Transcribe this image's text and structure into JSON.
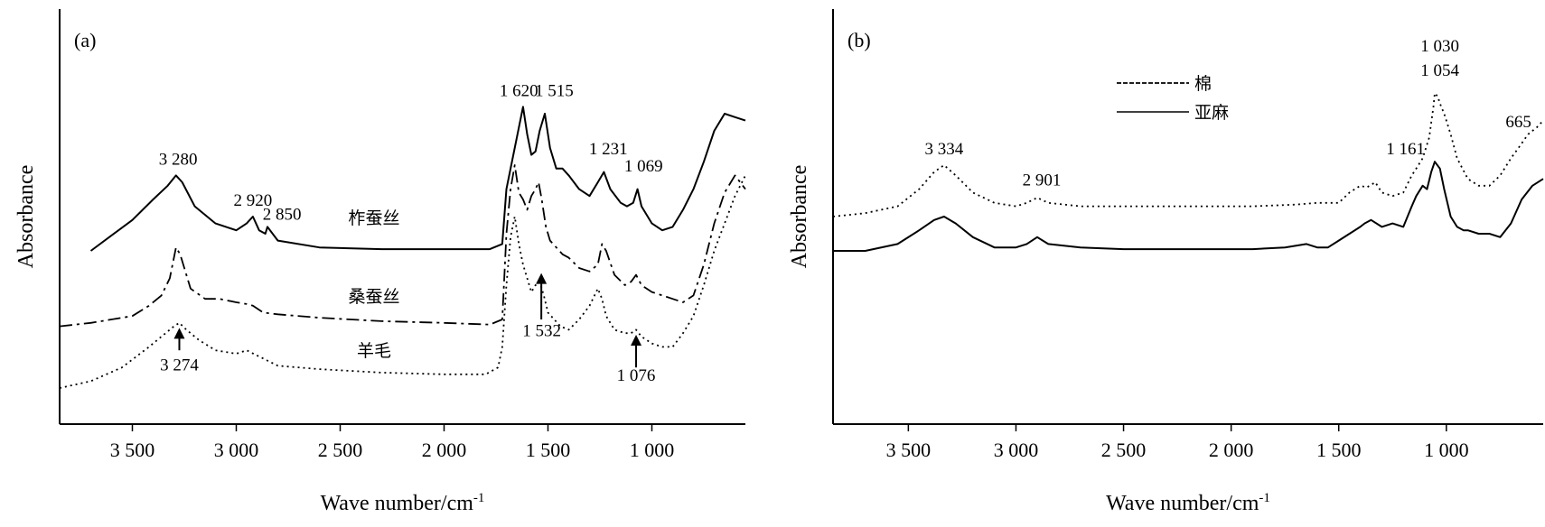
{
  "chart_data": [
    {
      "type": "line",
      "panel_label": "(a)",
      "xlabel": "Wave number/cm",
      "xlabel_sup": "-1",
      "ylabel": "Absorbance",
      "x_reversed": true,
      "xlim": [
        3850,
        550
      ],
      "ylim": [
        0,
        1
      ],
      "x_ticks": [
        3500,
        3000,
        2500,
        2000,
        1500,
        1000
      ],
      "x_tick_labels": [
        "3 500",
        "3 000",
        "2 500",
        "2 000",
        "1 500",
        "1 000"
      ],
      "grid": false,
      "series": [
        {
          "name": "柞蚕丝",
          "line_style": "solid",
          "x": [
            3700,
            3500,
            3400,
            3330,
            3290,
            3260,
            3200,
            3100,
            3000,
            2950,
            2920,
            2890,
            2860,
            2850,
            2800,
            2600,
            2300,
            2000,
            1780,
            1720,
            1700,
            1660,
            1640,
            1620,
            1600,
            1580,
            1560,
            1540,
            1515,
            1490,
            1460,
            1430,
            1400,
            1350,
            1300,
            1260,
            1231,
            1200,
            1150,
            1120,
            1090,
            1069,
            1050,
            1000,
            950,
            900,
            850,
            800,
            750,
            700,
            650,
            600,
            550
          ],
          "y": [
            0.4,
            0.49,
            0.55,
            0.59,
            0.62,
            0.6,
            0.53,
            0.48,
            0.46,
            0.48,
            0.5,
            0.46,
            0.45,
            0.47,
            0.43,
            0.41,
            0.405,
            0.405,
            0.405,
            0.42,
            0.58,
            0.7,
            0.76,
            0.82,
            0.74,
            0.68,
            0.69,
            0.75,
            0.8,
            0.7,
            0.64,
            0.64,
            0.62,
            0.58,
            0.56,
            0.6,
            0.63,
            0.58,
            0.54,
            0.53,
            0.54,
            0.58,
            0.53,
            0.48,
            0.46,
            0.47,
            0.52,
            0.58,
            0.66,
            0.75,
            0.8,
            0.79,
            0.78
          ]
        },
        {
          "name": "桑蚕丝",
          "line_style": "dashdot",
          "x": [
            3850,
            3700,
            3500,
            3420,
            3360,
            3320,
            3290,
            3270,
            3250,
            3220,
            3150,
            3080,
            3000,
            2950,
            2920,
            2870,
            2800,
            2600,
            2300,
            2000,
            1780,
            1720,
            1700,
            1680,
            1660,
            1640,
            1620,
            1600,
            1580,
            1560,
            1545,
            1530,
            1510,
            1490,
            1460,
            1430,
            1400,
            1350,
            1300,
            1260,
            1240,
            1220,
            1180,
            1130,
            1100,
            1076,
            1050,
            1000,
            950,
            900,
            850,
            800,
            750,
            700,
            650,
            600,
            550
          ],
          "y": [
            0.18,
            0.19,
            0.21,
            0.24,
            0.27,
            0.32,
            0.41,
            0.39,
            0.35,
            0.29,
            0.26,
            0.26,
            0.25,
            0.245,
            0.24,
            0.22,
            0.215,
            0.205,
            0.195,
            0.19,
            0.185,
            0.2,
            0.45,
            0.58,
            0.65,
            0.57,
            0.55,
            0.52,
            0.56,
            0.58,
            0.6,
            0.55,
            0.47,
            0.43,
            0.41,
            0.39,
            0.38,
            0.35,
            0.34,
            0.36,
            0.42,
            0.4,
            0.33,
            0.3,
            0.31,
            0.33,
            0.3,
            0.28,
            0.27,
            0.26,
            0.25,
            0.27,
            0.36,
            0.48,
            0.57,
            0.62,
            0.58
          ]
        },
        {
          "name": "羊毛",
          "line_style": "dotted",
          "x": [
            3850,
            3700,
            3550,
            3420,
            3340,
            3300,
            3274,
            3240,
            3180,
            3100,
            3000,
            2950,
            2900,
            2800,
            2600,
            2300,
            2000,
            1800,
            1740,
            1720,
            1700,
            1680,
            1660,
            1640,
            1620,
            1600,
            1580,
            1560,
            1540,
            1520,
            1500,
            1470,
            1440,
            1400,
            1350,
            1300,
            1260,
            1240,
            1220,
            1180,
            1130,
            1100,
            1076,
            1050,
            1000,
            950,
            900,
            850,
            800,
            750,
            700,
            650,
            600,
            550
          ],
          "y": [
            0.0,
            0.02,
            0.06,
            0.12,
            0.16,
            0.18,
            0.19,
            0.17,
            0.14,
            0.11,
            0.1,
            0.11,
            0.095,
            0.065,
            0.055,
            0.045,
            0.04,
            0.04,
            0.06,
            0.12,
            0.3,
            0.44,
            0.5,
            0.42,
            0.36,
            0.32,
            0.28,
            0.3,
            0.31,
            0.27,
            0.22,
            0.2,
            0.18,
            0.17,
            0.2,
            0.24,
            0.29,
            0.26,
            0.21,
            0.17,
            0.16,
            0.16,
            0.17,
            0.15,
            0.13,
            0.12,
            0.12,
            0.16,
            0.21,
            0.3,
            0.4,
            0.48,
            0.56,
            0.62
          ]
        }
      ],
      "annotations": [
        {
          "text": "3 280",
          "x": 3280,
          "y": 0.63
        },
        {
          "text": "2 920",
          "x": 2920,
          "y": 0.51
        },
        {
          "text": "2 850",
          "x": 2780,
          "y": 0.47
        },
        {
          "text": "1 620",
          "x": 1640,
          "y": 0.83
        },
        {
          "text": "1 515",
          "x": 1470,
          "y": 0.83
        },
        {
          "text": "1 231",
          "x": 1210,
          "y": 0.66
        },
        {
          "text": "1 069",
          "x": 1040,
          "y": 0.61
        },
        {
          "text": "1 532",
          "x": 1530,
          "y": 0.13
        },
        {
          "text": "1 076",
          "x": 1076,
          "y": 0.0
        },
        {
          "text": "3 274",
          "x": 3274,
          "y": 0.03
        }
      ],
      "arrows": [
        {
          "x": 3274,
          "y_from": 0.11,
          "y_to": 0.17
        },
        {
          "x": 1532,
          "y_from": 0.2,
          "y_to": 0.33
        },
        {
          "x": 1076,
          "y_from": 0.06,
          "y_to": 0.15
        }
      ]
    },
    {
      "type": "line",
      "panel_label": "(b)",
      "xlabel": "Wave number/cm",
      "xlabel_sup": "-1",
      "ylabel": "Absorbance",
      "x_reversed": true,
      "xlim": [
        3850,
        550
      ],
      "ylim": [
        0,
        1
      ],
      "x_ticks": [
        3500,
        3000,
        2500,
        2000,
        1500,
        1000
      ],
      "x_tick_labels": [
        "3 500",
        "3 000",
        "2 500",
        "2 000",
        "1 500",
        "1 000"
      ],
      "grid": false,
      "legend_position": "top-center",
      "series": [
        {
          "name": "棉",
          "line_style": "dotted",
          "x": [
            3850,
            3700,
            3550,
            3450,
            3380,
            3334,
            3280,
            3200,
            3100,
            3000,
            2950,
            2901,
            2850,
            2700,
            2500,
            2200,
            1900,
            1700,
            1600,
            1500,
            1450,
            1400,
            1370,
            1330,
            1300,
            1250,
            1200,
            1161,
            1140,
            1110,
            1080,
            1060,
            1054,
            1040,
            1030,
            1010,
            980,
            950,
            900,
            850,
            800,
            750,
            700,
            665,
            620,
            580,
            550
          ],
          "y": [
            0.5,
            0.51,
            0.53,
            0.58,
            0.63,
            0.65,
            0.62,
            0.57,
            0.54,
            0.53,
            0.54,
            0.555,
            0.54,
            0.53,
            0.53,
            0.53,
            0.53,
            0.535,
            0.54,
            0.54,
            0.57,
            0.59,
            0.585,
            0.6,
            0.57,
            0.56,
            0.57,
            0.62,
            0.64,
            0.67,
            0.73,
            0.82,
            0.86,
            0.85,
            0.83,
            0.8,
            0.74,
            0.67,
            0.61,
            0.59,
            0.59,
            0.62,
            0.67,
            0.7,
            0.74,
            0.76,
            0.78
          ]
        },
        {
          "name": "亚麻",
          "line_style": "solid",
          "x": [
            3850,
            3700,
            3550,
            3450,
            3380,
            3334,
            3280,
            3200,
            3100,
            3000,
            2950,
            2901,
            2850,
            2700,
            2500,
            2200,
            1900,
            1750,
            1650,
            1600,
            1550,
            1500,
            1450,
            1400,
            1380,
            1350,
            1300,
            1250,
            1200,
            1161,
            1140,
            1110,
            1090,
            1070,
            1054,
            1030,
            1010,
            980,
            950,
            920,
            900,
            850,
            800,
            750,
            700,
            650,
            600,
            550
          ],
          "y": [
            0.4,
            0.4,
            0.42,
            0.46,
            0.49,
            0.5,
            0.48,
            0.44,
            0.41,
            0.41,
            0.42,
            0.44,
            0.42,
            0.41,
            0.405,
            0.405,
            0.405,
            0.41,
            0.42,
            0.41,
            0.41,
            0.43,
            0.45,
            0.47,
            0.48,
            0.49,
            0.47,
            0.48,
            0.47,
            0.53,
            0.56,
            0.59,
            0.58,
            0.63,
            0.66,
            0.64,
            0.58,
            0.5,
            0.47,
            0.46,
            0.46,
            0.45,
            0.45,
            0.44,
            0.48,
            0.55,
            0.59,
            0.61
          ]
        }
      ],
      "annotations": [
        {
          "text": "3 334",
          "x": 3334,
          "y": 0.66
        },
        {
          "text": "2 901",
          "x": 2880,
          "y": 0.57
        },
        {
          "text": "1 161",
          "x": 1190,
          "y": 0.66
        },
        {
          "text": "1 030",
          "x": 1030,
          "y": 0.96
        },
        {
          "text": "1 054",
          "x": 1030,
          "y": 0.89
        },
        {
          "text": "665",
          "x": 665,
          "y": 0.74
        }
      ]
    }
  ]
}
